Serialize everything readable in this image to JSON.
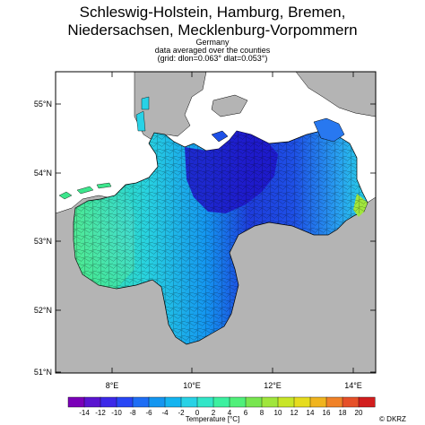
{
  "title": {
    "line1": "Schleswig-Holstein, Hamburg, Bremen,",
    "line2": "Niedersachsen, Mecklenburg-Vorpommern",
    "country": "Germany",
    "note": "data averaged over the counties",
    "grid": "(grid: dlon=0.063° dlat=0.053°)"
  },
  "axes": {
    "lat_labels": [
      "55°N",
      "54°N",
      "53°N",
      "52°N",
      "51°N"
    ],
    "lon_labels": [
      "8°E",
      "10°E",
      "12°E",
      "14°E"
    ]
  },
  "colorbar": {
    "tick_labels": [
      "-14",
      "-12",
      "-10",
      "-8",
      "-6",
      "-4",
      "-2",
      "0",
      "2",
      "4",
      "6",
      "8",
      "10",
      "12",
      "14",
      "16",
      "18",
      "20"
    ],
    "colors": [
      "#7a00b8",
      "#5a14d0",
      "#3c28e8",
      "#2846f5",
      "#1e6ef5",
      "#1496f0",
      "#14b4f0",
      "#28d2e6",
      "#32e6c8",
      "#3cf0a0",
      "#50f07a",
      "#78e650",
      "#a0e63c",
      "#c8e628",
      "#e6dc1e",
      "#f0b41e",
      "#f08228",
      "#e65028",
      "#d21e1e"
    ],
    "title": "Temperature [°C]"
  },
  "credit": "© DKRZ",
  "regions": [
    {
      "name": "mecklenburg-coast",
      "color": "#1e14c8"
    },
    {
      "name": "schleswig-holstein-east",
      "color": "#1e50e6"
    },
    {
      "name": "schleswig-holstein-west",
      "color": "#1496f0"
    },
    {
      "name": "lower-saxony-west",
      "color": "#3ce6a0"
    },
    {
      "name": "lower-saxony-east",
      "color": "#14c8e6"
    },
    {
      "name": "vorpommern-east",
      "color": "#28b4f0"
    }
  ]
}
